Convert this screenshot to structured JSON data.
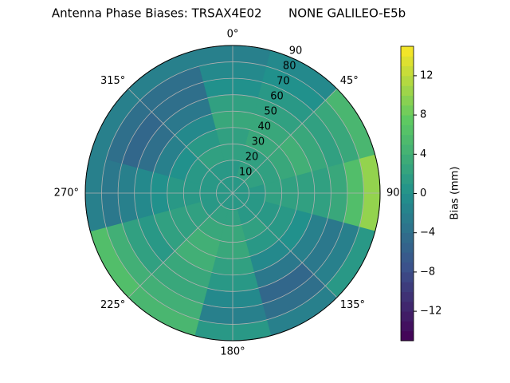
{
  "chart_data": {
    "type": "polar_contour",
    "title": "Antenna Phase Biases: TRSAX4E02       NONE GALILEO-E5b",
    "theta_zero": "N",
    "theta_direction": "clockwise",
    "xticks": [
      {
        "value": 0,
        "label": "0°"
      },
      {
        "value": 45,
        "label": "45°"
      },
      {
        "value": 90,
        "label": "90°"
      },
      {
        "value": 135,
        "label": "135°"
      },
      {
        "value": 180,
        "label": "180°"
      },
      {
        "value": 225,
        "label": "225°"
      },
      {
        "value": 270,
        "label": "270°"
      },
      {
        "value": 315,
        "label": "315°"
      }
    ],
    "ylim": [
      0,
      90
    ],
    "yticks": [
      10,
      20,
      30,
      40,
      50,
      60,
      70,
      80,
      90
    ],
    "grid": true,
    "colormap": "viridis",
    "colorbar": {
      "label": "Bias (mm)",
      "lim": [
        -15,
        15
      ],
      "ticks": [
        {
          "value": -12,
          "label": "−12"
        },
        {
          "value": -8,
          "label": "−8"
        },
        {
          "value": -4,
          "label": "−4"
        },
        0,
        4,
        8,
        12
      ]
    },
    "field": {
      "azimuth": [
        0,
        30,
        60,
        90,
        120,
        150,
        180,
        210,
        240,
        270,
        300,
        330
      ],
      "zenith": [
        5,
        15,
        25,
        35,
        45,
        55,
        65,
        75,
        85
      ],
      "values": [
        [
          1,
          1,
          2,
          2,
          3,
          2,
          0,
          -1,
          -2
        ],
        [
          1,
          2,
          2,
          3,
          3,
          2,
          1,
          0,
          -1
        ],
        [
          1,
          2,
          2,
          3,
          4,
          3,
          2,
          3,
          5
        ],
        [
          1,
          1,
          2,
          2,
          2,
          2,
          3,
          6,
          10
        ],
        [
          1,
          1,
          1,
          1,
          0,
          -2,
          -3,
          -2,
          1
        ],
        [
          1,
          1,
          2,
          1,
          -1,
          -3,
          -5,
          -4,
          -2
        ],
        [
          1,
          2,
          3,
          3,
          2,
          1,
          -1,
          -2,
          1
        ],
        [
          1,
          2,
          3,
          4,
          4,
          3,
          3,
          4,
          5
        ],
        [
          1,
          1,
          2,
          2,
          2,
          1,
          2,
          4,
          6
        ],
        [
          1,
          1,
          1,
          1,
          0,
          -1,
          -2,
          -3,
          -2
        ],
        [
          1,
          1,
          1,
          0,
          -2,
          -4,
          -5,
          -4,
          -2
        ],
        [
          1,
          1,
          2,
          1,
          -1,
          -3,
          -4,
          -4,
          -2
        ]
      ]
    }
  }
}
